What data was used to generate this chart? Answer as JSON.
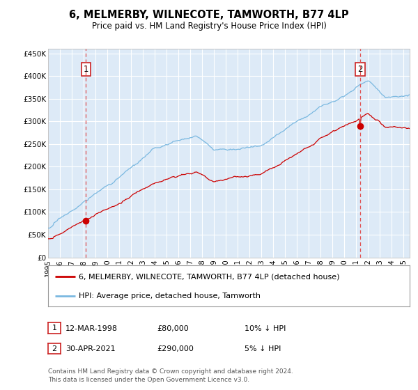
{
  "title": "6, MELMERBY, WILNECOTE, TAMWORTH, B77 4LP",
  "subtitle": "Price paid vs. HM Land Registry's House Price Index (HPI)",
  "title_fontsize": 10.5,
  "subtitle_fontsize": 8.5,
  "background_color": "#ffffff",
  "plot_bg_color": "#ddeaf7",
  "grid_color": "#ffffff",
  "ylim": [
    0,
    460000
  ],
  "xlim_start": 1995.0,
  "xlim_end": 2025.5,
  "yticks": [
    0,
    50000,
    100000,
    150000,
    200000,
    250000,
    300000,
    350000,
    400000,
    450000
  ],
  "ytick_labels": [
    "£0",
    "£50K",
    "£100K",
    "£150K",
    "£200K",
    "£250K",
    "£300K",
    "£350K",
    "£400K",
    "£450K"
  ],
  "xtick_years": [
    1995,
    1996,
    1997,
    1998,
    1999,
    2000,
    2001,
    2002,
    2003,
    2004,
    2005,
    2006,
    2007,
    2008,
    2009,
    2010,
    2011,
    2012,
    2013,
    2014,
    2015,
    2016,
    2017,
    2018,
    2019,
    2020,
    2021,
    2022,
    2023,
    2024,
    2025
  ],
  "hpi_color": "#7ab8e0",
  "price_color": "#cc0000",
  "marker_color": "#cc0000",
  "vline_color": "#e05050",
  "point1_date": 1998.19,
  "point1_value": 80000,
  "point2_date": 2021.33,
  "point2_value": 290000,
  "legend_label1": "6, MELMERBY, WILNECOTE, TAMWORTH, B77 4LP (detached house)",
  "legend_label2": "HPI: Average price, detached house, Tamworth",
  "annotation1_label": "1",
  "annotation2_label": "2",
  "table_row1": [
    "1",
    "12-MAR-1998",
    "£80,000",
    "10% ↓ HPI"
  ],
  "table_row2": [
    "2",
    "30-APR-2021",
    "£290,000",
    "5% ↓ HPI"
  ],
  "footer": "Contains HM Land Registry data © Crown copyright and database right 2024.\nThis data is licensed under the Open Government Licence v3.0."
}
